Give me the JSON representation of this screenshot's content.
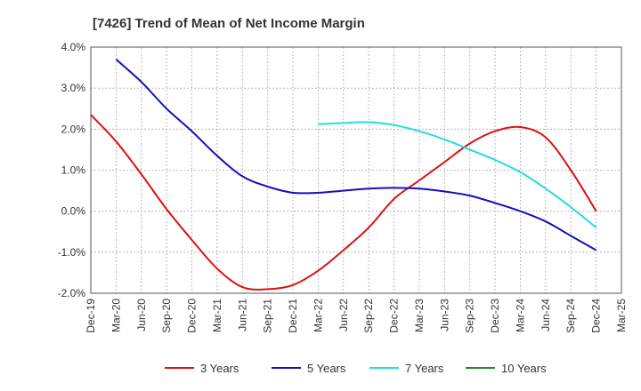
{
  "chart_data": {
    "type": "line",
    "title": "[7426]  Trend of Mean of Net Income Margin",
    "xlabel": "",
    "ylabel": "",
    "x_tick_labels": [
      "Dec-19",
      "Mar-20",
      "Jun-20",
      "Sep-20",
      "Dec-20",
      "Mar-21",
      "Jun-21",
      "Sep-21",
      "Dec-21",
      "Mar-22",
      "Jun-22",
      "Sep-22",
      "Dec-22",
      "Mar-23",
      "Jun-23",
      "Sep-23",
      "Dec-23",
      "Mar-24",
      "Jun-24",
      "Sep-24",
      "Dec-24",
      "Mar-25"
    ],
    "y_tick_labels": [
      "4.0%",
      "3.0%",
      "2.0%",
      "1.0%",
      "0.0%",
      "-1.0%",
      "-2.0%"
    ],
    "ylim": [
      -2.0,
      4.0
    ],
    "grid": true,
    "legend_position": "bottom",
    "series": [
      {
        "name": "3 Years",
        "color": "#dd1111",
        "values": [
          2.35,
          1.7,
          0.9,
          0.05,
          -0.7,
          -1.4,
          -1.85,
          -1.9,
          -1.8,
          -1.45,
          -0.95,
          -0.4,
          0.3,
          0.75,
          1.2,
          1.65,
          1.95,
          2.05,
          1.8,
          1.0,
          0.0,
          null
        ]
      },
      {
        "name": "5 Years",
        "color": "#1111bb",
        "values": [
          null,
          3.7,
          3.15,
          2.5,
          1.95,
          1.35,
          0.85,
          0.6,
          0.45,
          0.45,
          0.5,
          0.55,
          0.57,
          0.55,
          0.48,
          0.38,
          0.2,
          0.0,
          -0.25,
          -0.6,
          -0.95,
          null
        ]
      },
      {
        "name": "7 Years",
        "color": "#22dddd",
        "values": [
          null,
          null,
          null,
          null,
          null,
          null,
          null,
          null,
          null,
          2.12,
          2.15,
          2.17,
          2.1,
          1.95,
          1.75,
          1.5,
          1.25,
          0.95,
          0.55,
          0.1,
          -0.4,
          null
        ]
      },
      {
        "name": "10 Years",
        "color": "#228822",
        "values": [
          null,
          null,
          null,
          null,
          null,
          null,
          null,
          null,
          null,
          null,
          null,
          null,
          null,
          null,
          null,
          null,
          null,
          null,
          null,
          null,
          null,
          null
        ]
      }
    ]
  }
}
